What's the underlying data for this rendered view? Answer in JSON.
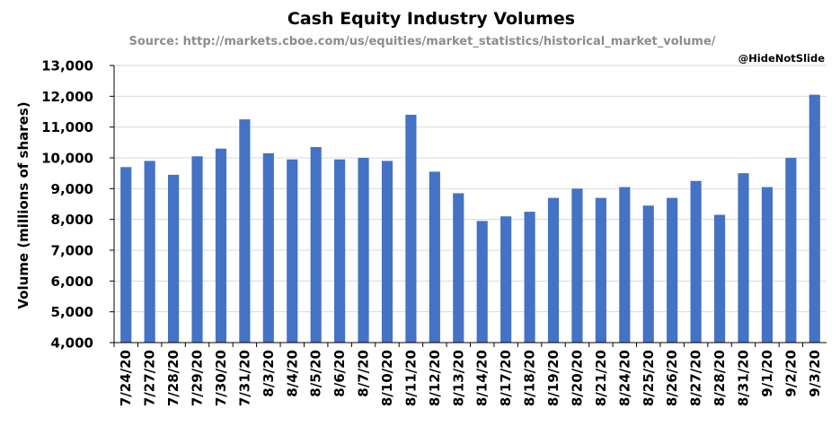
{
  "chart_data": {
    "type": "bar",
    "title": "Cash Equity Industry Volumes",
    "subtitle": "Source: http://markets.cboe.com/us/equities/market_statistics/historical_market_volume/",
    "watermark": "@HideNotSlide",
    "xlabel": "",
    "ylabel": "Volume (millions of shares)",
    "ylim": [
      4000,
      13000
    ],
    "yticks": [
      4000,
      5000,
      6000,
      7000,
      8000,
      9000,
      10000,
      11000,
      12000,
      13000
    ],
    "ytick_labels": [
      "4,000",
      "5,000",
      "6,000",
      "7,000",
      "8,000",
      "9,000",
      "10,000",
      "11,000",
      "12,000",
      "13,000"
    ],
    "grid": true,
    "legend": "none",
    "bar_color": "#4472c4",
    "categories": [
      "7/24/20",
      "7/27/20",
      "7/28/20",
      "7/29/20",
      "7/30/20",
      "7/31/20",
      "8/3/20",
      "8/4/20",
      "8/5/20",
      "8/6/20",
      "8/7/20",
      "8/10/20",
      "8/11/20",
      "8/12/20",
      "8/13/20",
      "8/14/20",
      "8/17/20",
      "8/18/20",
      "8/19/20",
      "8/20/20",
      "8/21/20",
      "8/24/20",
      "8/25/20",
      "8/26/20",
      "8/27/20",
      "8/28/20",
      "8/31/20",
      "9/1/20",
      "9/2/20",
      "9/3/20"
    ],
    "values": [
      9700,
      9900,
      9450,
      10050,
      10300,
      11250,
      10150,
      9950,
      10350,
      9950,
      10000,
      9900,
      11400,
      9550,
      8850,
      7950,
      8100,
      8250,
      8700,
      9000,
      8700,
      9050,
      8450,
      8700,
      9250,
      8150,
      9500,
      9050,
      10000,
      12050
    ]
  }
}
